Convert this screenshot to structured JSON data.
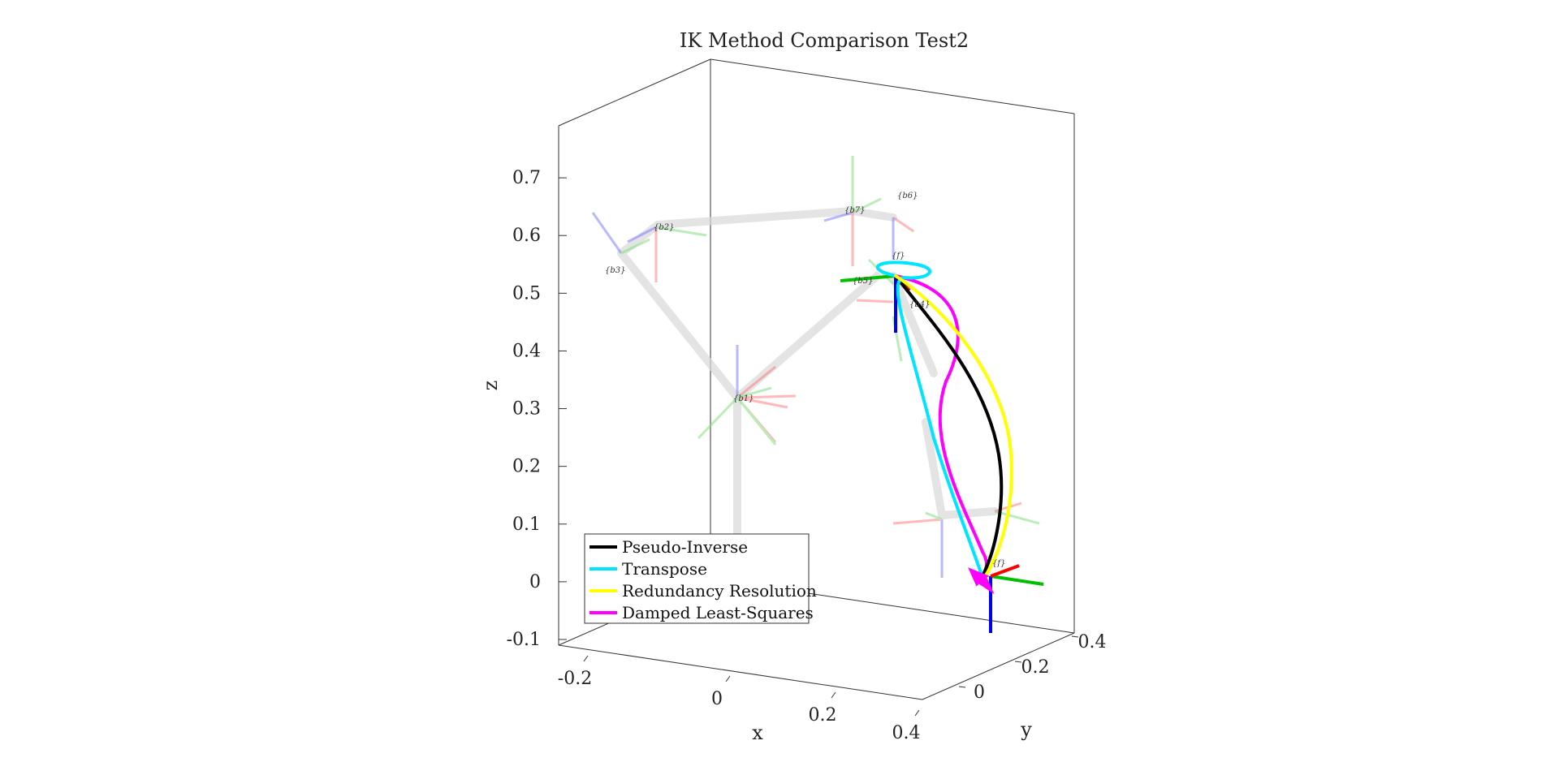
{
  "chart_data": {
    "type": "line",
    "title": "IK Method Comparison Test2",
    "xlabel": "x",
    "ylabel": "y",
    "zlabel": "z",
    "x_ticks": [
      "-0.2",
      "0",
      "0.2",
      "0.4"
    ],
    "y_ticks": [
      "0",
      "0.2",
      "0.4"
    ],
    "z_ticks": [
      "-0.1",
      "0",
      "0.1",
      "0.2",
      "0.3",
      "0.4",
      "0.5",
      "0.6",
      "0.7"
    ],
    "zlim": [
      -0.1,
      0.8
    ],
    "legend_position": "bottom-left",
    "series": [
      {
        "name": "Pseudo-Inverse",
        "color": "#000000"
      },
      {
        "name": "Transpose",
        "color": "#00e5ff"
      },
      {
        "name": "Redundancy Resolution",
        "color": "#ffff00"
      },
      {
        "name": "Damped Least-Squares",
        "color": "#ff00ff"
      }
    ],
    "frame_labels": [
      "{b1}",
      "{b2}",
      "{b3}",
      "{b4}",
      "{b5}",
      "{b6}",
      "{b7}",
      "{f}",
      "{f}"
    ],
    "frame_axis_letters": [
      "x",
      "y",
      "z"
    ]
  }
}
